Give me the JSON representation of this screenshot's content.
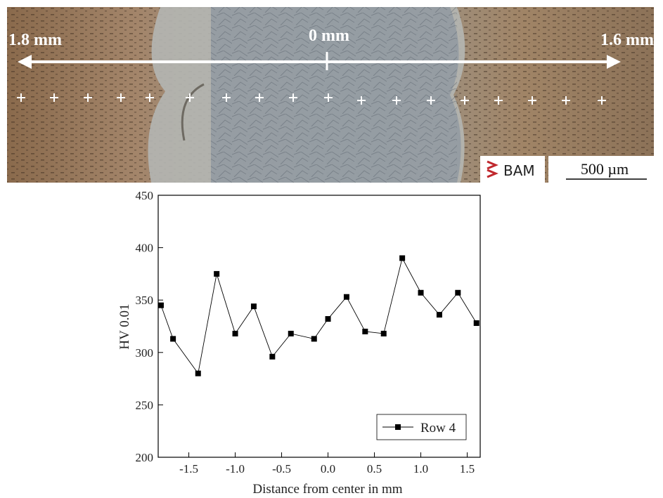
{
  "micrograph": {
    "left_label": "1.8 mm",
    "center_label": "0 mm",
    "right_label": "1.6 mm",
    "logo": "BAM",
    "scale_bar": "500 µm"
  },
  "chart_data": {
    "type": "line",
    "x_label": "Distance from center in mm",
    "y_label": "HV 0.01",
    "x": [
      -1.8,
      -1.67,
      -1.4,
      -1.2,
      -1.0,
      -0.8,
      -0.6,
      -0.4,
      -0.15,
      0.0,
      0.2,
      0.4,
      0.6,
      0.8,
      1.0,
      1.2,
      1.4,
      1.6
    ],
    "series": [
      {
        "name": "Row 4",
        "color": "#000000",
        "values": [
          345,
          313,
          280,
          375,
          318,
          344,
          296,
          318,
          313,
          332,
          353,
          320,
          318,
          390,
          357,
          336,
          357,
          328
        ]
      }
    ],
    "xlim": [
      -1.83,
      1.64
    ],
    "xticks": [
      -1.5,
      {
        "value": -1.0,
        "label": "-1.0"
      },
      -0.5,
      {
        "value": 0,
        "label": "0.0"
      },
      0.5,
      {
        "value": 1.0,
        "label": "1.0"
      },
      1.5
    ],
    "ylim": [
      200,
      450
    ],
    "yticks": [
      200,
      250,
      300,
      350,
      400,
      450
    ],
    "legend": "lower right"
  }
}
